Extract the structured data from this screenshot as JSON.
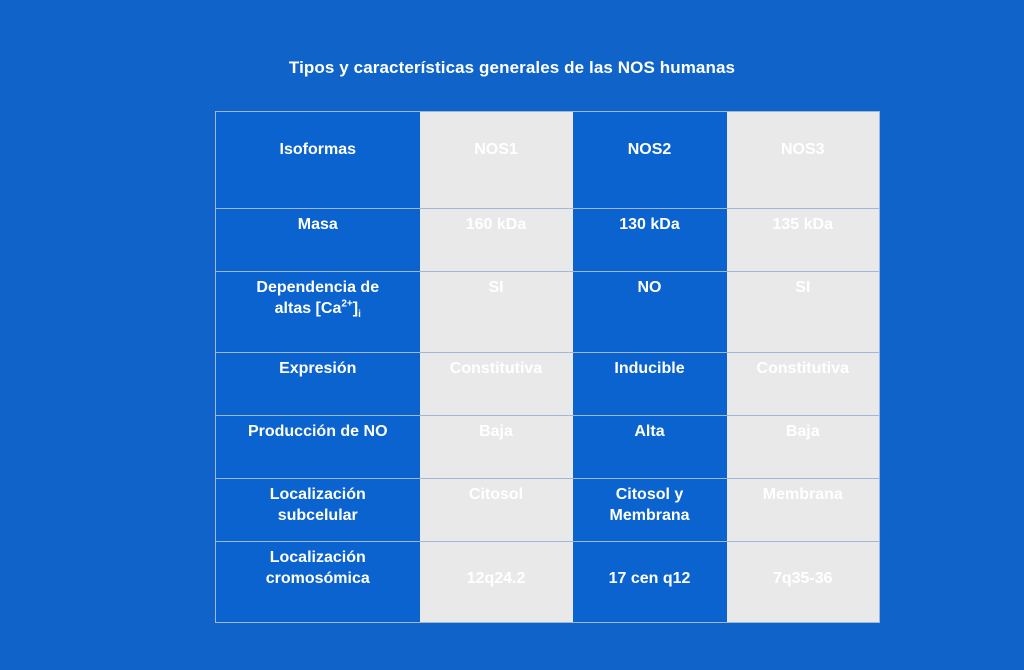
{
  "title": "Tipos y características generales de las NOS humanas",
  "colors": {
    "background": "#0f63c9",
    "blue_cell": "#0b63cf",
    "grey_cell": "#e9e9e9",
    "text": "#ffffff"
  },
  "table": {
    "header": {
      "label": "Isoformas",
      "nos1": "NOS1",
      "nos2": "NOS2",
      "nos3": "NOS3"
    },
    "rows": [
      {
        "label": "Masa",
        "nos1": "160 kDa",
        "nos2": "130 kDa",
        "nos3": "135 kDa"
      },
      {
        "label_main": "Dependencia de",
        "label_line2": "altas [Ca",
        "label_sup": "2+",
        "label_close": "]",
        "label_sub": "i",
        "nos1": "SI",
        "nos2": "NO",
        "nos3": "SI"
      },
      {
        "label": "Expresión",
        "nos1": "Constitutiva",
        "nos2": "Inducible",
        "nos3": "Constitutiva"
      },
      {
        "label": "Producción de NO",
        "nos1": "Baja",
        "nos2": "Alta",
        "nos3": "Baja"
      },
      {
        "label_line1": "Localización",
        "label_line2": "subcelular",
        "nos1": "Citosol",
        "nos2_line1": "Citosol y",
        "nos2_line2": "Membrana",
        "nos3": "Membrana"
      },
      {
        "label_line1": "Localización",
        "label_line2": "cromosómica",
        "nos1": "12q24.2",
        "nos2": "17 cen q12",
        "nos3": "7q35-36"
      }
    ]
  }
}
